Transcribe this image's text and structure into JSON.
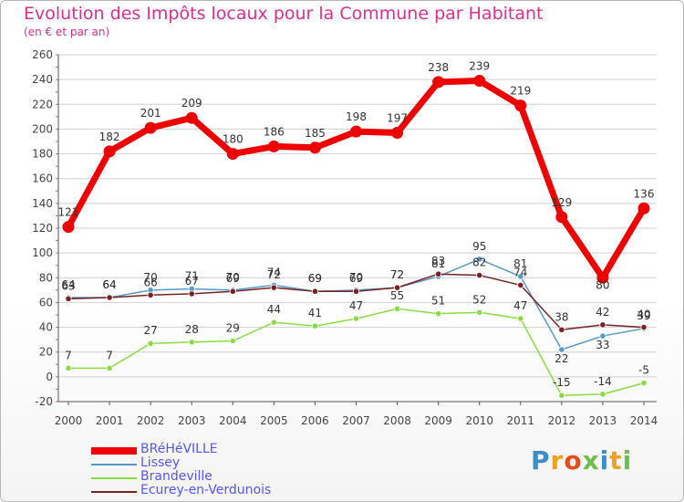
{
  "title": "Evolution des Impôts locaux pour la Commune par Habitant",
  "subtitle": "(en € et par an)",
  "logo": {
    "text": "Proxiti",
    "letters": [
      "P",
      "r",
      "o",
      "x",
      "i",
      "t",
      "i"
    ],
    "colors": [
      "#3b8ec9",
      "#f0a020",
      "#e84c1c",
      "#6cc04a",
      "#3b8ec9",
      "#f0a020",
      "#6cc04a"
    ]
  },
  "colors": {
    "title": "#d9308f",
    "legend_text": "#5555ff",
    "grid": "#cfcfcf"
  },
  "chart_data": {
    "type": "line",
    "x": [
      "2000",
      "2001",
      "2002",
      "2003",
      "2004",
      "2005",
      "2006",
      "2007",
      "2008",
      "2009",
      "2010",
      "2011",
      "2012",
      "2013",
      "2014"
    ],
    "ylim": [
      -20,
      260
    ],
    "yticks": [
      -20,
      0,
      20,
      40,
      60,
      80,
      100,
      120,
      140,
      160,
      180,
      200,
      220,
      240,
      260
    ],
    "grid": "horizontal",
    "legend": "bottom-left",
    "series": [
      {
        "name": "BRéHéVILLE",
        "color": "#ee0000",
        "values": [
          121,
          182,
          201,
          209,
          180,
          186,
          185,
          198,
          197,
          238,
          239,
          219,
          129,
          80,
          136
        ],
        "labels": [
          "121",
          "182",
          "201",
          "209",
          "180",
          "186",
          "185",
          "198",
          "197",
          "238",
          "239",
          "219",
          "129",
          "80",
          "136"
        ]
      },
      {
        "name": "Lissey",
        "color": "#5599cc",
        "values": [
          64,
          64,
          70,
          71,
          70,
          74,
          69,
          70,
          72,
          81,
          95,
          81,
          22,
          33,
          39
        ],
        "labels": [
          "64",
          "64",
          "70",
          "71",
          "70",
          "74",
          "69",
          "70",
          "72",
          "81",
          "95",
          "81",
          "22",
          "33",
          "39"
        ]
      },
      {
        "name": "Brandeville",
        "color": "#88dd44",
        "values": [
          7,
          7,
          27,
          28,
          29,
          44,
          41,
          47,
          55,
          51,
          52,
          47,
          -15,
          -14,
          -5
        ],
        "labels": [
          "7",
          "7",
          "27",
          "28",
          "29",
          "44",
          "41",
          "47",
          "55",
          "51",
          "52",
          "47",
          "-15",
          "-14",
          "-5"
        ]
      },
      {
        "name": "Ecurey-en-Verdunois",
        "color": "#772222",
        "values": [
          63,
          64,
          66,
          67,
          69,
          72,
          69,
          69,
          72,
          83,
          82,
          74,
          38,
          42,
          40
        ],
        "labels": [
          "63",
          "64",
          "66",
          "67",
          "69",
          "72",
          "69",
          "69",
          "72",
          "83",
          "82",
          "74",
          "38",
          "42",
          "40"
        ]
      }
    ]
  }
}
